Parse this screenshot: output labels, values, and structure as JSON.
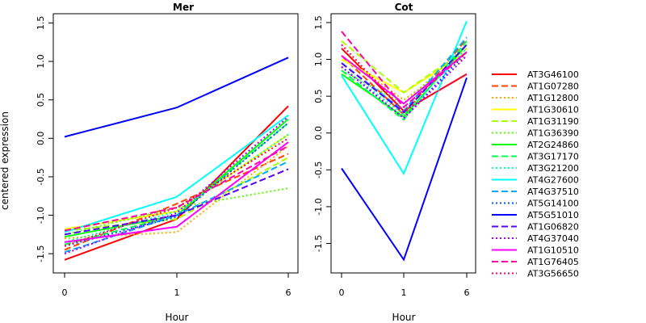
{
  "chart_data": [
    {
      "type": "line",
      "title": "Mer",
      "xlabel": "Hour",
      "ylabel": "centered expression",
      "categories": [
        "0",
        "1",
        "6"
      ],
      "ylim": [
        -1.75,
        1.62
      ],
      "yticks": [
        "-1.5",
        "-1.0",
        "-0.5",
        "0.0",
        "0.5",
        "1.0",
        "1.5"
      ],
      "series": [
        {
          "name": "AT3G46100",
          "color": "#FF0000",
          "dash": "solid",
          "values": [
            -1.58,
            -1.05,
            0.42
          ]
        },
        {
          "name": "AT1G07280",
          "color": "#FF4400",
          "dash": "dashed",
          "values": [
            -1.45,
            -0.85,
            -0.2
          ]
        },
        {
          "name": "AT1G12800",
          "color": "#FFAA00",
          "dash": "dotted",
          "values": [
            -1.3,
            -1.22,
            -0.1
          ]
        },
        {
          "name": "AT1G30610",
          "color": "#FFFF00",
          "dash": "solid",
          "values": [
            -1.18,
            -0.95,
            0.05
          ]
        },
        {
          "name": "AT1G31190",
          "color": "#AAFF00",
          "dash": "dashed",
          "values": [
            -1.2,
            -1.05,
            -0.25
          ]
        },
        {
          "name": "AT1G36390",
          "color": "#55FF00",
          "dash": "dotted",
          "values": [
            -1.25,
            -0.9,
            -0.65
          ]
        },
        {
          "name": "AT2G24860",
          "color": "#00FF00",
          "dash": "solid",
          "values": [
            -1.28,
            -1.0,
            0.25
          ]
        },
        {
          "name": "AT3G17170",
          "color": "#00FF55",
          "dash": "dashed",
          "values": [
            -1.38,
            -1.0,
            0.2
          ]
        },
        {
          "name": "AT3G21200",
          "color": "#00FFAA",
          "dash": "dotted",
          "values": [
            -1.35,
            -0.95,
            0.05
          ]
        },
        {
          "name": "AT4G27600",
          "color": "#00FFFF",
          "dash": "solid",
          "values": [
            -1.22,
            -0.76,
            0.3
          ]
        },
        {
          "name": "AT4G37510",
          "color": "#00AAFF",
          "dash": "dashed",
          "values": [
            -1.48,
            -1.0,
            -0.3
          ]
        },
        {
          "name": "AT5G14100",
          "color": "#0055FF",
          "dash": "dotted",
          "values": [
            -1.4,
            -1.02,
            0.2
          ]
        },
        {
          "name": "AT5G51010",
          "color": "#0000FF",
          "dash": "solid",
          "values": [
            0.02,
            0.4,
            1.05
          ]
        },
        {
          "name": "AT1G06820",
          "color": "#5500FF",
          "dash": "dashed",
          "values": [
            -1.25,
            -1.0,
            -0.4
          ]
        },
        {
          "name": "AT4G37040",
          "color": "#AA00FF",
          "dash": "dotted",
          "values": [
            -1.5,
            -0.97,
            0.28
          ]
        },
        {
          "name": "AT1G10510",
          "color": "#FF00FF",
          "dash": "solid",
          "values": [
            -1.35,
            -1.15,
            -0.05
          ]
        },
        {
          "name": "AT1G76405",
          "color": "#FF00AA",
          "dash": "dashed",
          "values": [
            -1.2,
            -0.9,
            -0.1
          ]
        },
        {
          "name": "AT3G56650",
          "color": "#FF0055",
          "dash": "dotted",
          "values": [
            -1.4,
            -0.9,
            0.0
          ]
        }
      ]
    },
    {
      "type": "line",
      "title": "Cot",
      "xlabel": "Hour",
      "ylabel": "",
      "categories": [
        "0",
        "1",
        "6"
      ],
      "ylim": [
        -1.9,
        1.62
      ],
      "yticks": [
        "-1.5",
        "-1.0",
        "-0.5",
        "0.0",
        "0.5",
        "1.0",
        "1.5"
      ],
      "series": [
        {
          "name": "AT3G46100",
          "color": "#FF0000",
          "dash": "solid",
          "values": [
            1.15,
            0.3,
            0.8
          ]
        },
        {
          "name": "AT1G07280",
          "color": "#FF4400",
          "dash": "dashed",
          "values": [
            1.05,
            0.25,
            1.28
          ]
        },
        {
          "name": "AT1G12800",
          "color": "#FFAA00",
          "dash": "dotted",
          "values": [
            1.05,
            0.45,
            1.05
          ]
        },
        {
          "name": "AT1G30610",
          "color": "#FFFF00",
          "dash": "solid",
          "values": [
            1.0,
            0.55,
            1.1
          ]
        },
        {
          "name": "AT1G31190",
          "color": "#AAFF00",
          "dash": "dashed",
          "values": [
            1.25,
            0.55,
            1.15
          ]
        },
        {
          "name": "AT1G36390",
          "color": "#55FF00",
          "dash": "dotted",
          "values": [
            0.85,
            0.4,
            1.2
          ]
        },
        {
          "name": "AT2G24860",
          "color": "#00FF00",
          "dash": "solid",
          "values": [
            0.8,
            0.22,
            1.2
          ]
        },
        {
          "name": "AT3G17170",
          "color": "#00FF55",
          "dash": "dashed",
          "values": [
            0.85,
            0.18,
            1.25
          ]
        },
        {
          "name": "AT3G21200",
          "color": "#00FFAA",
          "dash": "dotted",
          "values": [
            0.9,
            0.25,
            1.15
          ]
        },
        {
          "name": "AT4G27600",
          "color": "#00FFFF",
          "dash": "solid",
          "values": [
            0.78,
            -0.55,
            1.52
          ]
        },
        {
          "name": "AT4G37510",
          "color": "#00AAFF",
          "dash": "dashed",
          "values": [
            0.95,
            0.3,
            1.3
          ]
        },
        {
          "name": "AT5G14100",
          "color": "#0055FF",
          "dash": "dotted",
          "values": [
            0.9,
            0.2,
            1.1
          ]
        },
        {
          "name": "AT5G51010",
          "color": "#0000FF",
          "dash": "solid",
          "values": [
            -0.48,
            -1.72,
            0.75
          ]
        },
        {
          "name": "AT1G06820",
          "color": "#5500FF",
          "dash": "dashed",
          "values": [
            0.95,
            0.28,
            1.2
          ]
        },
        {
          "name": "AT4G37040",
          "color": "#AA00FF",
          "dash": "dotted",
          "values": [
            0.9,
            0.2,
            1.05
          ]
        },
        {
          "name": "AT1G10510",
          "color": "#FF00FF",
          "dash": "solid",
          "values": [
            1.05,
            0.4,
            1.1
          ]
        },
        {
          "name": "AT1G76405",
          "color": "#FF00AA",
          "dash": "dashed",
          "values": [
            1.38,
            0.35,
            1.1
          ]
        },
        {
          "name": "AT3G56650",
          "color": "#FF0055",
          "dash": "dotted",
          "values": [
            1.2,
            0.3,
            0.8
          ]
        }
      ]
    }
  ]
}
